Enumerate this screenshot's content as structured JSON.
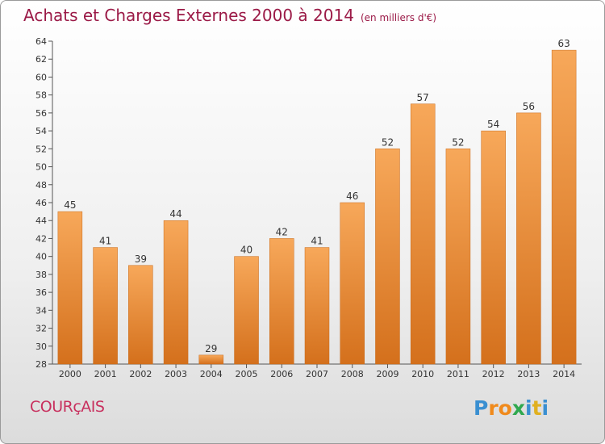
{
  "header": {
    "title": "Achats et Charges Externes 2000 à 2014",
    "unit": "(en milliers d'€)"
  },
  "footer": {
    "commune": "COURçAIS",
    "logo": {
      "letters": [
        "P",
        "r",
        "o",
        "x",
        "i",
        "t",
        "i"
      ],
      "colors": [
        "#3a8fd1",
        "#f08a1c",
        "#f08a1c",
        "#2fa84f",
        "#3a8fd1",
        "#e0b020",
        "#3a8fd1"
      ]
    }
  },
  "chart_data": {
    "type": "bar",
    "title": "Achats et Charges Externes 2000 à 2014",
    "subtitle": "(en milliers d'€)",
    "xlabel": "",
    "ylabel": "",
    "categories": [
      "2000",
      "2001",
      "2002",
      "2003",
      "2004",
      "2005",
      "2006",
      "2007",
      "2008",
      "2009",
      "2010",
      "2011",
      "2012",
      "2013",
      "2014"
    ],
    "values": [
      45,
      41,
      39,
      44,
      29,
      40,
      42,
      41,
      46,
      52,
      57,
      52,
      54,
      56,
      63
    ],
    "ylim": [
      28,
      64
    ],
    "yticks": [
      28,
      30,
      32,
      34,
      36,
      38,
      40,
      42,
      44,
      46,
      48,
      50,
      52,
      54,
      56,
      58,
      60,
      62,
      64
    ],
    "grid": false,
    "legend": "none",
    "bar_color_top": "#f7a85a",
    "bar_color_bottom": "#d4701c"
  }
}
